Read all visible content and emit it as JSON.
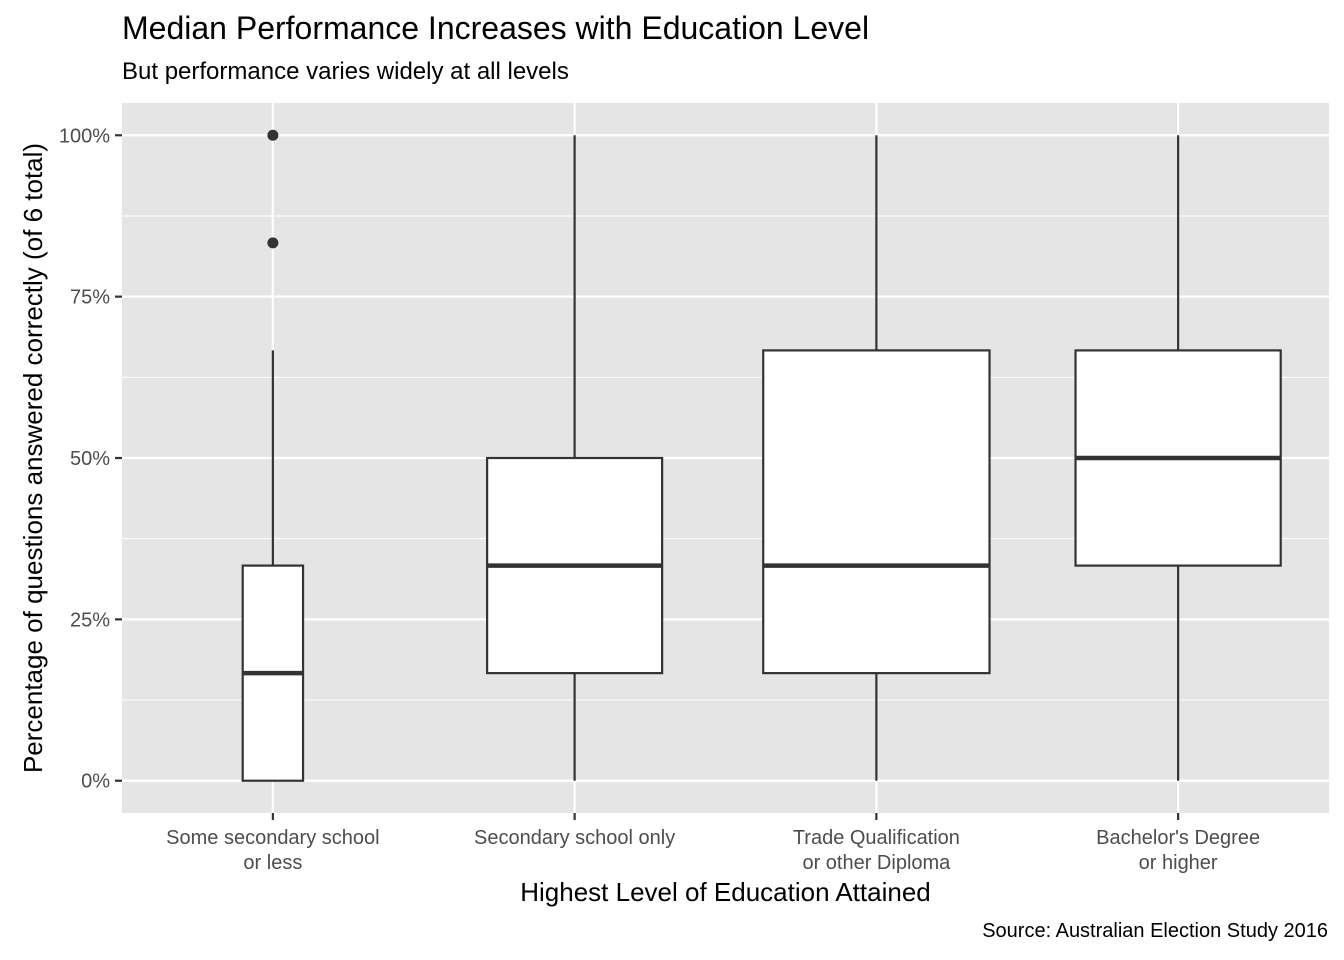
{
  "chart_data": {
    "type": "boxplot",
    "title": "Median Performance Increases with Education Level",
    "subtitle": "But performance varies widely at all levels",
    "caption": "Source: Australian Election Study 2016",
    "xlabel": "Highest Level of Education Attained",
    "ylabel": "Percentage of questions answered correctly (of 6 total)",
    "ylim": [
      -0.05,
      1.05
    ],
    "yticks": [
      0,
      0.25,
      0.5,
      0.75,
      1.0
    ],
    "ytick_labels": [
      "0%",
      "25%",
      "50%",
      "75%",
      "100%"
    ],
    "grid": true,
    "categories": [
      [
        "Some secondary school",
        "or less"
      ],
      [
        "Secondary school only"
      ],
      [
        "Trade Qualification",
        "or other Diploma"
      ],
      [
        "Bachelor's Degree",
        "or higher"
      ]
    ],
    "boxes": [
      {
        "lower_whisker": 0.0,
        "q1": 0.0,
        "median": 0.1667,
        "q3": 0.3333,
        "upper_whisker": 0.6667,
        "outliers": [
          0.8333,
          1.0
        ],
        "relative_width": 0.2
      },
      {
        "lower_whisker": 0.0,
        "q1": 0.1667,
        "median": 0.3333,
        "q3": 0.5,
        "upper_whisker": 1.0,
        "outliers": [],
        "relative_width": 0.58
      },
      {
        "lower_whisker": 0.0,
        "q1": 0.1667,
        "median": 0.3333,
        "q3": 0.6667,
        "upper_whisker": 1.0,
        "outliers": [],
        "relative_width": 0.75
      },
      {
        "lower_whisker": 0.0,
        "q1": 0.3333,
        "median": 0.5,
        "q3": 0.6667,
        "upper_whisker": 1.0,
        "outliers": [],
        "relative_width": 0.68
      }
    ]
  }
}
